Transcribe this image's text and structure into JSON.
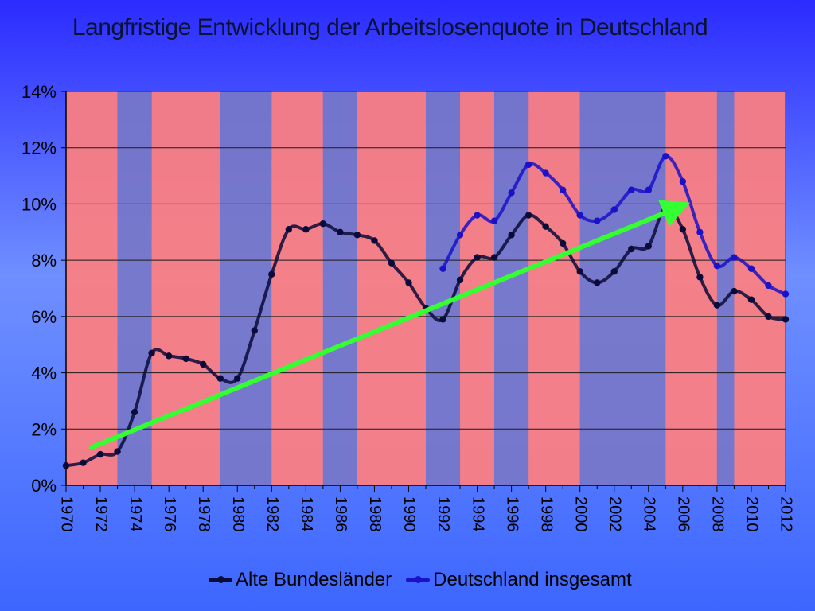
{
  "chart_data": {
    "type": "line",
    "title": "Langfristige Entwicklung der Arbeitslosenquote in Deutschland",
    "xlabel": "",
    "ylabel": "",
    "ylim": [
      0,
      14
    ],
    "y_ticks": [
      "0%",
      "2%",
      "4%",
      "6%",
      "8%",
      "10%",
      "12%",
      "14%"
    ],
    "x_ticks": [
      "1970",
      "1972",
      "1974",
      "1976",
      "1978",
      "1980",
      "1982",
      "1984",
      "1986",
      "1988",
      "1990",
      "1992",
      "1994",
      "1996",
      "1998",
      "2000",
      "2002",
      "2004",
      "2006",
      "2008",
      "2010",
      "2012"
    ],
    "grid": true,
    "legend_position": "bottom",
    "series": [
      {
        "name": "Alte Bundesländer",
        "color": "#0b0b3a",
        "x": [
          1970,
          1971,
          1972,
          1973,
          1974,
          1975,
          1976,
          1977,
          1978,
          1979,
          1980,
          1981,
          1982,
          1983,
          1984,
          1985,
          1986,
          1987,
          1988,
          1989,
          1990,
          1991,
          1992,
          1993,
          1994,
          1995,
          1996,
          1997,
          1998,
          1999,
          2000,
          2001,
          2002,
          2003,
          2004,
          2005,
          2006,
          2007,
          2008,
          2009,
          2010,
          2011,
          2012
        ],
        "values": [
          0.7,
          0.8,
          1.1,
          1.2,
          2.6,
          4.7,
          4.6,
          4.5,
          4.3,
          3.8,
          3.8,
          5.5,
          7.5,
          9.1,
          9.1,
          9.3,
          9.0,
          8.9,
          8.7,
          7.9,
          7.2,
          6.3,
          5.9,
          7.3,
          8.1,
          8.1,
          8.9,
          9.6,
          9.2,
          8.6,
          7.6,
          7.2,
          7.6,
          8.4,
          8.5,
          9.9,
          9.1,
          7.4,
          6.4,
          6.9,
          6.6,
          6.0,
          5.9
        ]
      },
      {
        "name": "Deutschland insgesamt",
        "color": "#1a12c8",
        "x": [
          1992,
          1993,
          1994,
          1995,
          1996,
          1997,
          1998,
          1999,
          2000,
          2001,
          2002,
          2003,
          2004,
          2005,
          2006,
          2007,
          2008,
          2009,
          2010,
          2011,
          2012
        ],
        "values": [
          7.7,
          8.9,
          9.6,
          9.4,
          10.4,
          11.4,
          11.1,
          10.5,
          9.6,
          9.4,
          9.8,
          10.5,
          10.5,
          11.7,
          10.8,
          9.0,
          7.8,
          8.1,
          7.7,
          7.1,
          6.8
        ]
      }
    ],
    "periods": {
      "colors": {
        "red": "#ff7f7f",
        "blue": "#7777c8"
      },
      "bands": [
        {
          "from": 1970,
          "to": 1973,
          "kind": "red"
        },
        {
          "from": 1973,
          "to": 1975,
          "kind": "blue"
        },
        {
          "from": 1975,
          "to": 1979,
          "kind": "red"
        },
        {
          "from": 1979,
          "to": 1982,
          "kind": "blue"
        },
        {
          "from": 1982,
          "to": 1985,
          "kind": "red"
        },
        {
          "from": 1985,
          "to": 1987,
          "kind": "blue"
        },
        {
          "from": 1987,
          "to": 1991,
          "kind": "red"
        },
        {
          "from": 1991,
          "to": 1993,
          "kind": "blue"
        },
        {
          "from": 1993,
          "to": 1995,
          "kind": "red"
        },
        {
          "from": 1995,
          "to": 1997,
          "kind": "blue"
        },
        {
          "from": 1997,
          "to": 2000,
          "kind": "red"
        },
        {
          "from": 2000,
          "to": 2005,
          "kind": "blue"
        },
        {
          "from": 2005,
          "to": 2008,
          "kind": "red"
        },
        {
          "from": 2008,
          "to": 2009,
          "kind": "blue"
        },
        {
          "from": 2009,
          "to": 2012,
          "kind": "red"
        }
      ]
    },
    "trend_arrow": {
      "color": "#33ff33",
      "from": [
        1971.5,
        1.35
      ],
      "to": [
        2006.5,
        10.0
      ]
    }
  }
}
